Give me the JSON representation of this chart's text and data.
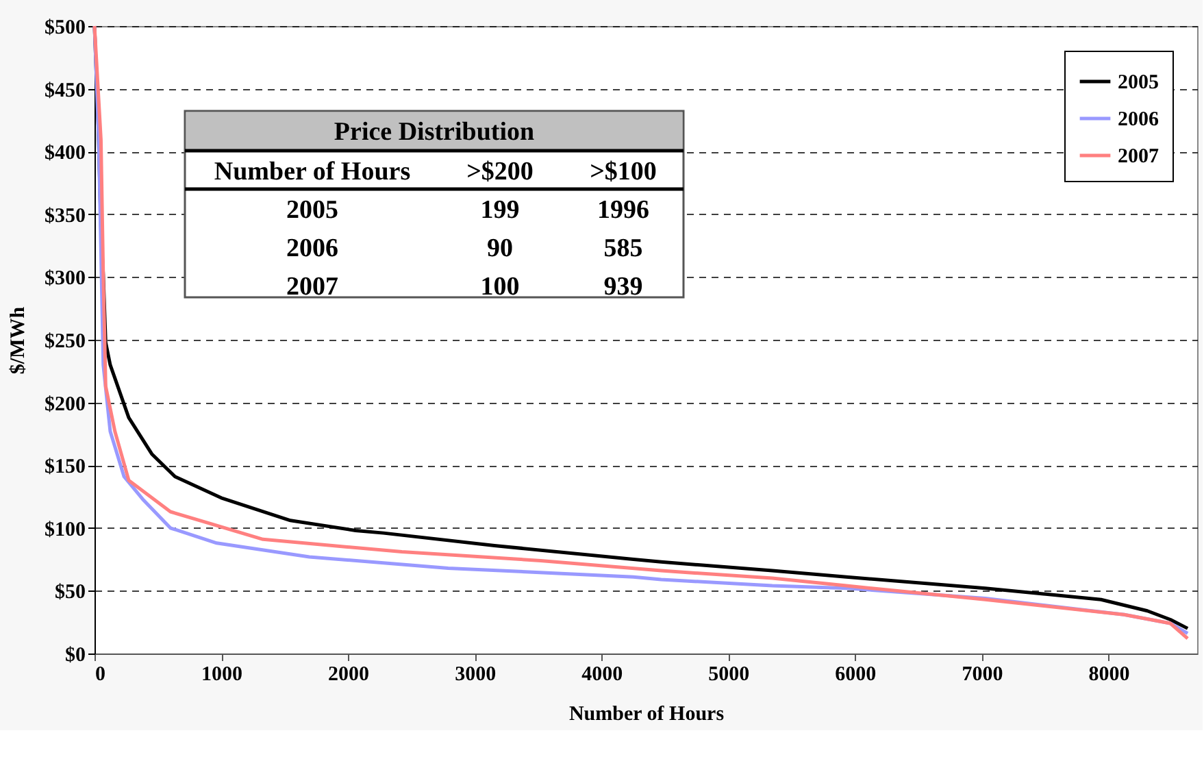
{
  "chart_data": {
    "type": "line",
    "xlabel": "Number of Hours",
    "ylabel": "$/MWh",
    "xlim": [
      0,
      8700
    ],
    "xticks": [
      0,
      1000,
      2000,
      3000,
      4000,
      5000,
      6000,
      7000,
      8000
    ],
    "ylim": [
      0,
      500
    ],
    "yticks": [
      {
        "value": 0,
        "label": "$0"
      },
      {
        "value": 50,
        "label": "$50"
      },
      {
        "value": 100,
        "label": "$100"
      },
      {
        "value": 150,
        "label": "$150"
      },
      {
        "value": 200,
        "label": "$200"
      },
      {
        "value": 250,
        "label": "$250"
      },
      {
        "value": 300,
        "label": "$300"
      },
      {
        "value": 350,
        "label": "$350"
      },
      {
        "value": 400,
        "label": "$400"
      },
      {
        "value": 450,
        "label": "$450"
      },
      {
        "value": 500,
        "label": "$500"
      }
    ],
    "grid": "y",
    "legend": "top right",
    "marker": "none",
    "line_style": "solid",
    "series": [
      {
        "name": "2005",
        "color": "#000000",
        "x": [
          0,
          30,
          51,
          69,
          88,
          124,
          270,
          452,
          635,
          1000,
          1546,
          2060,
          2280,
          3156,
          4252,
          4471,
          5348,
          5932,
          7028,
          7941,
          8307,
          8489,
          8625
        ],
        "values": [
          500,
          420,
          338,
          302,
          248,
          230,
          188,
          159,
          141,
          124,
          106,
          98,
          96,
          86,
          75,
          73,
          66,
          61,
          52,
          43,
          34,
          27,
          20
        ]
      },
      {
        "name": "2006",
        "color": "#9999ff",
        "x": [
          0,
          33,
          69,
          124,
          233,
          380,
          599,
          964,
          1695,
          2791,
          4252,
          4471,
          5348,
          5932,
          7028,
          8124,
          8489,
          8625
        ],
        "values": [
          500,
          409,
          230,
          177,
          141,
          123,
          100,
          88,
          77,
          68,
          61,
          59,
          54,
          52,
          44,
          31,
          24,
          16
        ]
      },
      {
        "name": "2007",
        "color": "#ff8080",
        "x": [
          0,
          51,
          69,
          88,
          161,
          270,
          599,
          1329,
          2425,
          3521,
          4471,
          5348,
          5932,
          7028,
          8124,
          8489,
          8625
        ],
        "values": [
          500,
          409,
          302,
          213,
          177,
          138,
          113,
          91,
          81,
          74,
          66,
          60,
          54,
          43,
          31,
          24,
          12
        ]
      }
    ],
    "annotations": [
      "Price Distribution",
      "Number of Hours",
      ">$200",
      ">$100",
      "2005",
      "199",
      "1996",
      "2006",
      "90",
      "585",
      "2007",
      "100",
      "939"
    ]
  }
}
